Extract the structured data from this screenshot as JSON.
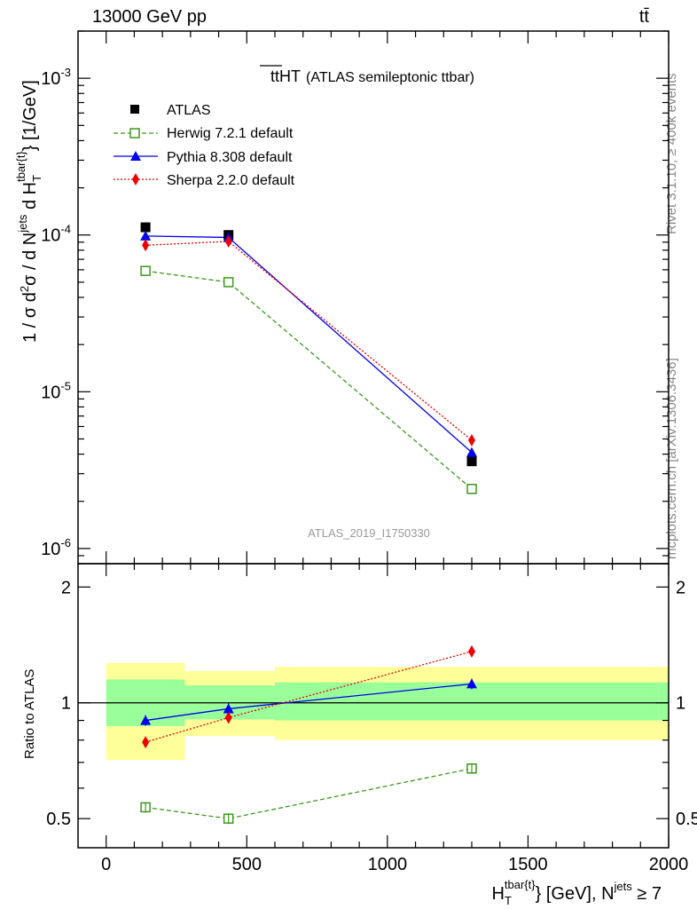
{
  "header": {
    "energy_label": "13000 GeV pp",
    "process_label": "tt̄"
  },
  "side_labels": {
    "rivet": "Rivet 3.1.10, ≥ 400k events",
    "mcplots": "mcplots.cern.ch [arXiv:1306.3436]"
  },
  "chart_data": [
    {
      "type": "line",
      "panel": "main",
      "title_main": "tt",
      "title_overline": "HT",
      "title_suffix": "(ATLAS semileptonic ttbar)",
      "analysis_label": "ATLAS_2019_I1750330",
      "ylabel": "1 / σ d²σ / d N^jets d H_T^{tbar{t}} [1/GeV]",
      "yscale": "log",
      "ylim": [
        8e-07,
        0.002
      ],
      "xlim": [
        -100,
        2000
      ],
      "y_tick_labels": [
        "10^-6",
        "10^-5",
        "10^-4",
        "10^-3"
      ],
      "legend_position": "top-left",
      "series": [
        {
          "name": "ATLAS",
          "x": [
            140,
            435,
            1300
          ],
          "y": [
            0.000112,
            0.0001,
            3.6e-06
          ],
          "color": "#000000",
          "marker": "square",
          "line": "none"
        },
        {
          "name": "Herwig 7.2.1 default",
          "x": [
            140,
            435,
            1300
          ],
          "y": [
            5.9e-05,
            5e-05,
            2.4e-06
          ],
          "color": "#3a9a1a",
          "marker": "open-square",
          "line": "dashed"
        },
        {
          "name": "Pythia 8.308 default",
          "x": [
            140,
            435,
            1300
          ],
          "y": [
            9.85e-05,
            9.65e-05,
            4.1e-06
          ],
          "color": "#0000ee",
          "marker": "triangle",
          "line": "solid"
        },
        {
          "name": "Sherpa 2.2.0 default",
          "x": [
            140,
            435,
            1300
          ],
          "y": [
            8.6e-05,
            9.1e-05,
            4.9e-06
          ],
          "color": "#ee0000",
          "marker": "diamond",
          "line": "dotted"
        }
      ]
    },
    {
      "type": "line",
      "panel": "ratio",
      "ylabel": "Ratio to ATLAS",
      "xlabel": "H_T^{tbar{t}} [GeV], N^jets ≥ 7",
      "yscale": "log",
      "ylim": [
        0.42,
        2.3
      ],
      "xlim": [
        -100,
        2000
      ],
      "x_tick_labels": [
        "0",
        "500",
        "1000",
        "1500",
        "2000"
      ],
      "y_tick_labels": [
        "0.5",
        "1",
        "2"
      ],
      "uncertainty_bands": [
        {
          "x_from": 0,
          "x_to": 280,
          "inner": [
            0.87,
            1.15
          ],
          "outer": [
            0.71,
            1.27
          ]
        },
        {
          "x_from": 280,
          "x_to": 600,
          "inner": [
            0.905,
            1.11
          ],
          "outer": [
            0.82,
            1.21
          ]
        },
        {
          "x_from": 600,
          "x_to": 2000,
          "inner": [
            0.9,
            1.13
          ],
          "outer": [
            0.8,
            1.24
          ]
        }
      ],
      "band_colors": {
        "inner": "#99ff99",
        "outer": "#ffff99"
      },
      "series": [
        {
          "name": "Herwig 7.2.1 default",
          "x": [
            140,
            435,
            1300
          ],
          "y": [
            0.535,
            0.5,
            0.675
          ],
          "color": "#3a9a1a",
          "marker": "open-square",
          "line": "dashed"
        },
        {
          "name": "Pythia 8.308 default",
          "x": [
            140,
            435,
            1300
          ],
          "y": [
            0.9,
            0.965,
            1.12
          ],
          "color": "#0000ee",
          "marker": "triangle",
          "line": "solid"
        },
        {
          "name": "Sherpa 2.2.0 default",
          "x": [
            140,
            435,
            1300
          ],
          "y": [
            0.79,
            0.915,
            1.36
          ],
          "color": "#ee0000",
          "marker": "diamond",
          "line": "dotted"
        }
      ]
    }
  ]
}
